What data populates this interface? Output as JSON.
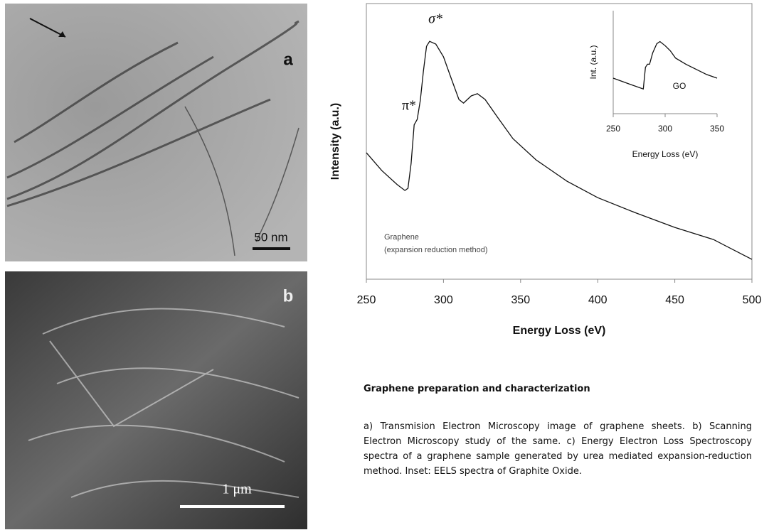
{
  "panels": [
    {
      "label": "a",
      "scale": "50 nm"
    },
    {
      "label": "b",
      "scale": "1 μm"
    }
  ],
  "chart_data": [
    {
      "type": "line",
      "xlabel": "Energy Loss (eV)",
      "ylabel": "Intensity (a.u.)",
      "annotations": [
        "σ*",
        "π*",
        "Graphene",
        "(expansion reduction method)"
      ],
      "x": [
        250,
        260,
        270,
        275,
        277,
        279,
        281,
        283,
        285,
        287,
        289,
        291,
        295,
        300,
        305,
        310,
        313,
        318,
        322,
        327,
        335,
        345,
        360,
        380,
        400,
        425,
        450,
        475,
        500
      ],
      "values": [
        45.9,
        39.4,
        34.3,
        32.2,
        33,
        42,
        56,
        58,
        65,
        75.5,
        84.5,
        86.3,
        85.3,
        80.7,
        72.9,
        65.2,
        63.9,
        66.5,
        67.3,
        65.2,
        58.8,
        51,
        43.3,
        35.6,
        29.6,
        24,
        18.8,
        14.4,
        7.2
      ],
      "color": "#111111",
      "xlim": [
        250,
        500
      ],
      "xticks": [
        250,
        300,
        350,
        400,
        450,
        500
      ],
      "ylim": [
        0,
        100
      ]
    },
    {
      "type": "line",
      "xlabel": "Energy Loss (eV)",
      "ylabel": "Int. (a.u.)",
      "annotations": [
        "GO"
      ],
      "x": [
        250,
        265,
        279,
        281,
        283,
        285,
        288,
        292,
        295,
        300,
        305,
        310,
        320,
        330,
        340,
        350
      ],
      "values": [
        34.5,
        29,
        24,
        45,
        48,
        48,
        59,
        68,
        70,
        66,
        61,
        54,
        48,
        43,
        38,
        34.5
      ],
      "color": "#111111",
      "xlim": [
        250,
        350
      ],
      "xticks": [
        250,
        300,
        350
      ],
      "ylim": [
        0,
        100
      ]
    }
  ],
  "caption": {
    "title": "Graphene preparation and characterization",
    "body": "a) Transmision Electron Microscopy image of graphene sheets. b) Scanning Electron Microscopy study of the same. c) Energy Electron Loss Spectroscopy spectra of a graphene sample generated by urea mediated expansion-reduction method. Inset: EELS spectra of Graphite Oxide."
  }
}
